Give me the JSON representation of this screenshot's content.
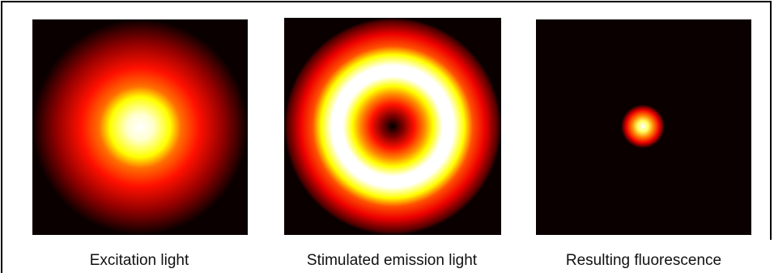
{
  "panels": [
    {
      "caption": "Excitation light"
    },
    {
      "caption": "Stimulated emission light"
    },
    {
      "caption": "Resulting fluorescence"
    }
  ]
}
